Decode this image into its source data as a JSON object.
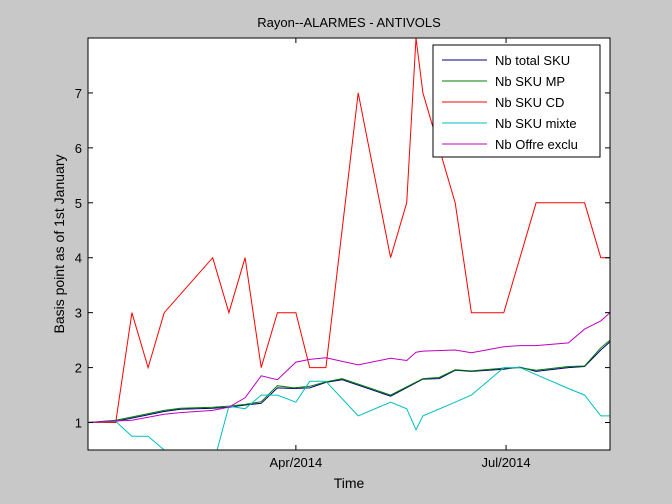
{
  "chart_data": {
    "type": "line",
    "title": "Rayon--ALARMES - ANTIVOLS",
    "xlabel": "Time",
    "ylabel": "Basis point as of 1st January",
    "xlim": [
      "2014-01-01",
      "2014-08-15"
    ],
    "ylim": [
      0.5,
      8
    ],
    "x_ticks": [
      {
        "date": "2014-04-01",
        "label": "Apr/2014"
      },
      {
        "date": "2014-07-01",
        "label": "Jul/2014"
      }
    ],
    "y_ticks": [
      1,
      2,
      3,
      4,
      5,
      6,
      7
    ],
    "grid": false,
    "legend_position": "top-right",
    "series": [
      {
        "name": "Nb total SKU",
        "color": "#00007f",
        "points": [
          [
            "2014-01-01",
            1.0
          ],
          [
            "2014-01-13",
            1.02
          ],
          [
            "2014-01-20",
            1.08
          ],
          [
            "2014-02-03",
            1.2
          ],
          [
            "2014-02-10",
            1.24
          ],
          [
            "2014-02-24",
            1.26
          ],
          [
            "2014-03-03",
            1.28
          ],
          [
            "2014-03-10",
            1.32
          ],
          [
            "2014-03-17",
            1.35
          ],
          [
            "2014-03-24",
            1.63
          ],
          [
            "2014-03-31",
            1.62
          ],
          [
            "2014-04-07",
            1.63
          ],
          [
            "2014-04-14",
            1.73
          ],
          [
            "2014-04-21",
            1.78
          ],
          [
            "2014-05-12",
            1.48
          ],
          [
            "2014-05-26",
            1.79
          ],
          [
            "2014-06-02",
            1.8
          ],
          [
            "2014-06-09",
            1.95
          ],
          [
            "2014-06-16",
            1.93
          ],
          [
            "2014-06-30",
            1.97
          ],
          [
            "2014-07-07",
            2.01
          ],
          [
            "2014-07-14",
            1.93
          ],
          [
            "2014-07-28",
            2.0
          ],
          [
            "2014-08-04",
            2.02
          ],
          [
            "2014-08-11",
            2.32
          ],
          [
            "2014-08-15",
            2.47
          ]
        ]
      },
      {
        "name": "Nb SKU MP",
        "color": "#007f00",
        "points": [
          [
            "2014-01-01",
            1.0
          ],
          [
            "2014-01-13",
            1.04
          ],
          [
            "2014-01-20",
            1.1
          ],
          [
            "2014-02-03",
            1.22
          ],
          [
            "2014-02-10",
            1.26
          ],
          [
            "2014-02-24",
            1.28
          ],
          [
            "2014-03-03",
            1.3
          ],
          [
            "2014-03-10",
            1.33
          ],
          [
            "2014-03-17",
            1.38
          ],
          [
            "2014-03-24",
            1.67
          ],
          [
            "2014-03-31",
            1.63
          ],
          [
            "2014-04-07",
            1.66
          ],
          [
            "2014-04-14",
            1.74
          ],
          [
            "2014-04-21",
            1.8
          ],
          [
            "2014-05-12",
            1.5
          ],
          [
            "2014-05-26",
            1.8
          ],
          [
            "2014-06-02",
            1.82
          ],
          [
            "2014-06-09",
            1.96
          ],
          [
            "2014-06-16",
            1.94
          ],
          [
            "2014-06-30",
            1.99
          ],
          [
            "2014-07-07",
            2.0
          ],
          [
            "2014-07-14",
            1.95
          ],
          [
            "2014-07-28",
            2.02
          ],
          [
            "2014-08-04",
            2.03
          ],
          [
            "2014-08-11",
            2.36
          ],
          [
            "2014-08-15",
            2.5
          ]
        ]
      },
      {
        "name": "Nb SKU CD",
        "color": "#ff0000",
        "points": [
          [
            "2014-01-01",
            1.0
          ],
          [
            "2014-01-13",
            1.0
          ],
          [
            "2014-01-20",
            3.0
          ],
          [
            "2014-01-27",
            2.0
          ],
          [
            "2014-02-03",
            3.0
          ],
          [
            "2014-02-24",
            4.0
          ],
          [
            "2014-03-03",
            3.0
          ],
          [
            "2014-03-10",
            4.0
          ],
          [
            "2014-03-17",
            2.0
          ],
          [
            "2014-03-24",
            3.0
          ],
          [
            "2014-04-01",
            3.0
          ],
          [
            "2014-04-07",
            2.0
          ],
          [
            "2014-04-14",
            2.0
          ],
          [
            "2014-04-28",
            7.0
          ],
          [
            "2014-05-12",
            4.0
          ],
          [
            "2014-05-19",
            5.0
          ],
          [
            "2014-05-23",
            8.0
          ],
          [
            "2014-05-26",
            7.0
          ],
          [
            "2014-06-09",
            5.0
          ],
          [
            "2014-06-16",
            3.0
          ],
          [
            "2014-06-30",
            3.0
          ],
          [
            "2014-07-14",
            5.0
          ],
          [
            "2014-08-04",
            5.0
          ],
          [
            "2014-08-11",
            4.0
          ],
          [
            "2014-08-15",
            4.0
          ]
        ]
      },
      {
        "name": "Nb SKU mixte",
        "color": "#00bfbf",
        "points": [
          [
            "2014-01-01",
            1.0
          ],
          [
            "2014-01-13",
            1.02
          ],
          [
            "2014-01-20",
            0.75
          ],
          [
            "2014-01-27",
            0.75
          ],
          [
            "2014-02-03",
            0.5
          ],
          [
            "2014-02-17",
            0.2
          ],
          [
            "2014-02-24",
            0.2
          ],
          [
            "2014-03-03",
            1.3
          ],
          [
            "2014-03-10",
            1.25
          ],
          [
            "2014-03-17",
            1.5
          ],
          [
            "2014-03-24",
            1.5
          ],
          [
            "2014-04-01",
            1.37
          ],
          [
            "2014-04-07",
            1.75
          ],
          [
            "2014-04-14",
            1.75
          ],
          [
            "2014-04-28",
            1.12
          ],
          [
            "2014-05-12",
            1.37
          ],
          [
            "2014-05-19",
            1.25
          ],
          [
            "2014-05-23",
            0.87
          ],
          [
            "2014-05-26",
            1.12
          ],
          [
            "2014-06-09",
            1.37
          ],
          [
            "2014-06-16",
            1.5
          ],
          [
            "2014-06-30",
            2.0
          ],
          [
            "2014-07-07",
            2.0
          ],
          [
            "2014-07-28",
            1.62
          ],
          [
            "2014-08-04",
            1.5
          ],
          [
            "2014-08-11",
            1.12
          ],
          [
            "2014-08-15",
            1.12
          ]
        ]
      },
      {
        "name": "Nb Offre exclu",
        "color": "#bf00bf",
        "points": [
          [
            "2014-01-01",
            1.0
          ],
          [
            "2014-01-13",
            1.03
          ],
          [
            "2014-01-20",
            1.04
          ],
          [
            "2014-02-03",
            1.15
          ],
          [
            "2014-02-10",
            1.18
          ],
          [
            "2014-02-24",
            1.22
          ],
          [
            "2014-03-03",
            1.28
          ],
          [
            "2014-03-10",
            1.45
          ],
          [
            "2014-03-17",
            1.85
          ],
          [
            "2014-03-24",
            1.78
          ],
          [
            "2014-04-01",
            2.1
          ],
          [
            "2014-04-07",
            2.15
          ],
          [
            "2014-04-14",
            2.18
          ],
          [
            "2014-04-28",
            2.05
          ],
          [
            "2014-05-12",
            2.17
          ],
          [
            "2014-05-19",
            2.13
          ],
          [
            "2014-05-23",
            2.28
          ],
          [
            "2014-05-26",
            2.3
          ],
          [
            "2014-06-09",
            2.32
          ],
          [
            "2014-06-16",
            2.27
          ],
          [
            "2014-06-30",
            2.38
          ],
          [
            "2014-07-07",
            2.4
          ],
          [
            "2014-07-14",
            2.4
          ],
          [
            "2014-07-28",
            2.45
          ],
          [
            "2014-08-04",
            2.7
          ],
          [
            "2014-08-11",
            2.85
          ],
          [
            "2014-08-15",
            3.0
          ]
        ]
      }
    ]
  }
}
